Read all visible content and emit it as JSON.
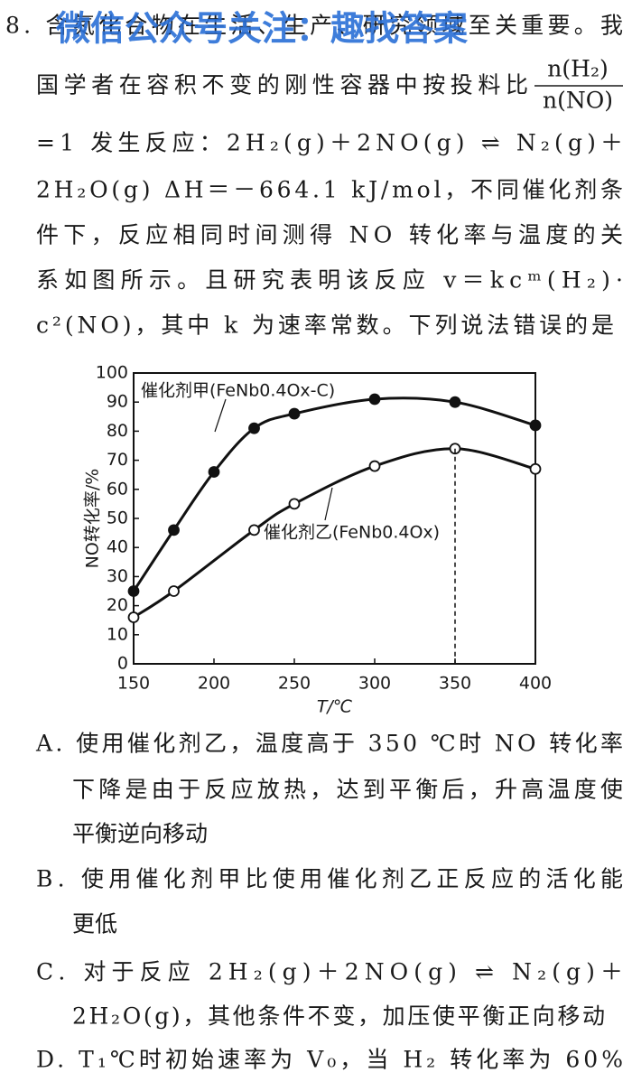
{
  "question": {
    "lines": [
      "8. 含氮化合物在生活、生产、研究领域至关重要。我",
      "国学者在容积不变的刚性容器中按投料比",
      "=1 发生反应：2H₂(g)＋2NO(g) ⇌ N₂(g)＋",
      "2H₂O(g)  ΔH＝－664.1 kJ/mol，不同催化剂条",
      "件下，反应相同时间测得 NO 转化率与温度的关",
      "系如图所示。且研究表明该反应 v＝kcᵐ(H₂)·",
      "c²(NO)，其中 k 为速率常数。下列说法错误的是"
    ],
    "ratio": {
      "numerator": "n(H₂)",
      "denominator": "n(NO)"
    }
  },
  "watermark": "微信公众号关注：趣找答案",
  "chart_data": {
    "type": "line",
    "xlabel": "T/℃",
    "ylabel": "NO转化率/%",
    "xlim": [
      150,
      400
    ],
    "ylim": [
      0,
      100
    ],
    "xticks": [
      150,
      200,
      250,
      300,
      350,
      400
    ],
    "yticks": [
      0,
      10,
      20,
      30,
      40,
      50,
      60,
      70,
      80,
      90,
      100
    ],
    "series": [
      {
        "name": "催化剂甲(FeNb0.4Ox-C)",
        "color": "#111111",
        "filled": true,
        "x": [
          150,
          175,
          200,
          225,
          250,
          300,
          350,
          400
        ],
        "values": [
          25,
          46,
          66,
          81,
          86,
          91,
          90,
          82
        ]
      },
      {
        "name": "催化剂乙(FeNb0.4Ox)",
        "color": "#111111",
        "filled": false,
        "x": [
          150,
          175,
          225,
          250,
          300,
          350,
          400
        ],
        "values": [
          16,
          25,
          46,
          55,
          68,
          74,
          67
        ]
      }
    ]
  },
  "options": {
    "A": [
      "A. 使用催化剂乙，温度高于 350 ℃时 NO 转化率",
      "下降是由于反应放热，达到平衡后，升高温度使",
      "平衡逆向移动"
    ],
    "B": [
      "B. 使用催化剂甲比使用催化剂乙正反应的活化能",
      "更低"
    ],
    "C": [
      "C. 对于反应 2H₂(g)＋2NO(g) ⇌ N₂(g)＋",
      "2H₂O(g)，其他条件不变，加压使平衡正向移动"
    ],
    "D": [
      "D. T₁℃时初始速率为 V₀，当 H₂ 转化率为 60%"
    ]
  }
}
